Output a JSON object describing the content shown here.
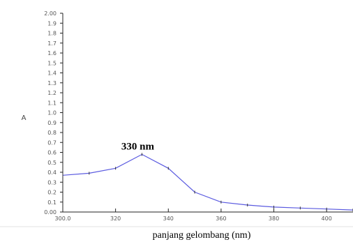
{
  "chart_data": {
    "type": "line",
    "title": "",
    "xlabel": "panjang gelombang (nm)",
    "ylabel": "A",
    "xlim": [
      300,
      410
    ],
    "ylim": [
      0,
      2.0
    ],
    "grid": false,
    "xticks": [
      "300.0",
      "320",
      "340",
      "360",
      "380",
      "400"
    ],
    "yticks": [
      "0.00",
      "0.1",
      "0.2",
      "0.3",
      "0.4",
      "0.5",
      "0.6",
      "0.7",
      "0.8",
      "0.9",
      "1.0",
      "1.1",
      "1.2",
      "1.3",
      "1.4",
      "1.5",
      "1.6",
      "1.7",
      "1.8",
      "1.9",
      "2.00"
    ],
    "annotations": [
      {
        "text": "330 nm",
        "x": 330,
        "y": 0.58
      }
    ],
    "series": [
      {
        "color": "#5a5ae0",
        "x": [
          300,
          310,
          320,
          330,
          340,
          350,
          360,
          370,
          380,
          390,
          400,
          410
        ],
        "y": [
          0.37,
          0.39,
          0.44,
          0.58,
          0.44,
          0.2,
          0.1,
          0.07,
          0.05,
          0.04,
          0.03,
          0.02
        ]
      }
    ]
  }
}
